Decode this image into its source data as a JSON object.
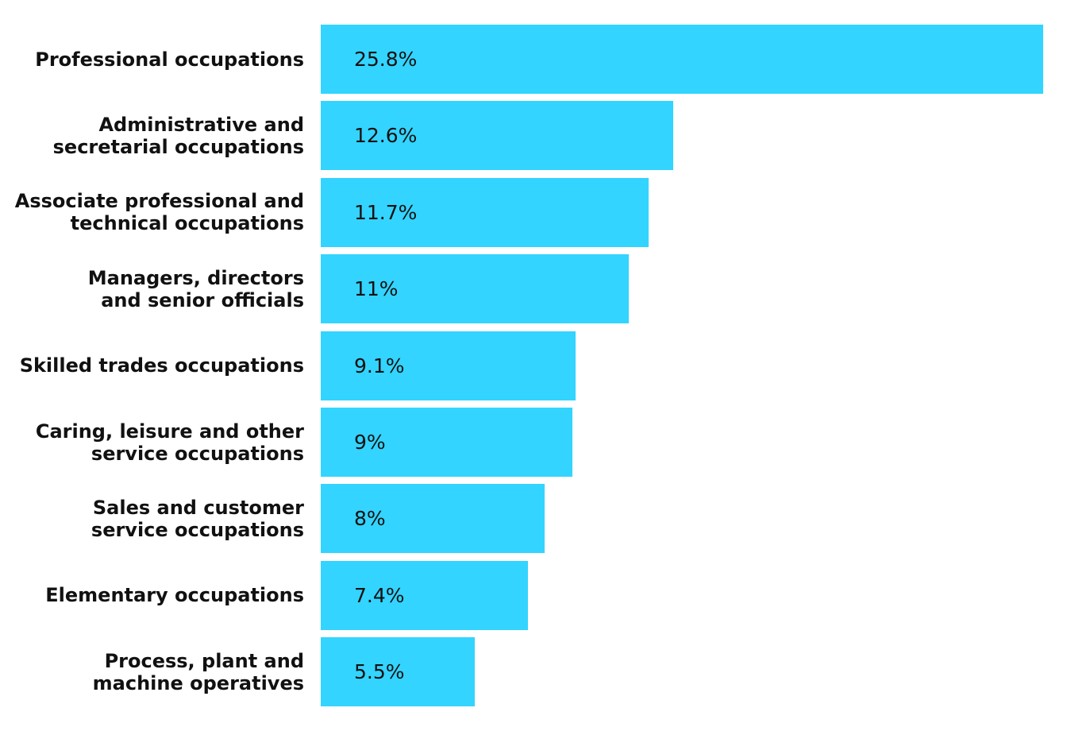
{
  "chart_data": {
    "type": "bar",
    "orientation": "horizontal",
    "color": "#33d4ff",
    "categories": [
      "Professional occupations",
      "Administrative and\nsecretarial occupations",
      "Associate professional and\ntechnical occupations",
      "Managers, directors\nand senior officials",
      "Skilled trades occupations",
      "Caring, leisure and other\nservice occupations",
      "Sales and customer\nservice occupations",
      "Elementary occupations",
      "Process, plant and\nmachine operatives"
    ],
    "values": [
      25.8,
      12.6,
      11.7,
      11,
      9.1,
      9,
      8,
      7.4,
      5.5
    ],
    "value_labels": [
      "25.8%",
      "12.6%",
      "11.7%",
      "11%",
      "9.1%",
      "9%",
      "8%",
      "7.4%",
      "5.5%"
    ]
  }
}
